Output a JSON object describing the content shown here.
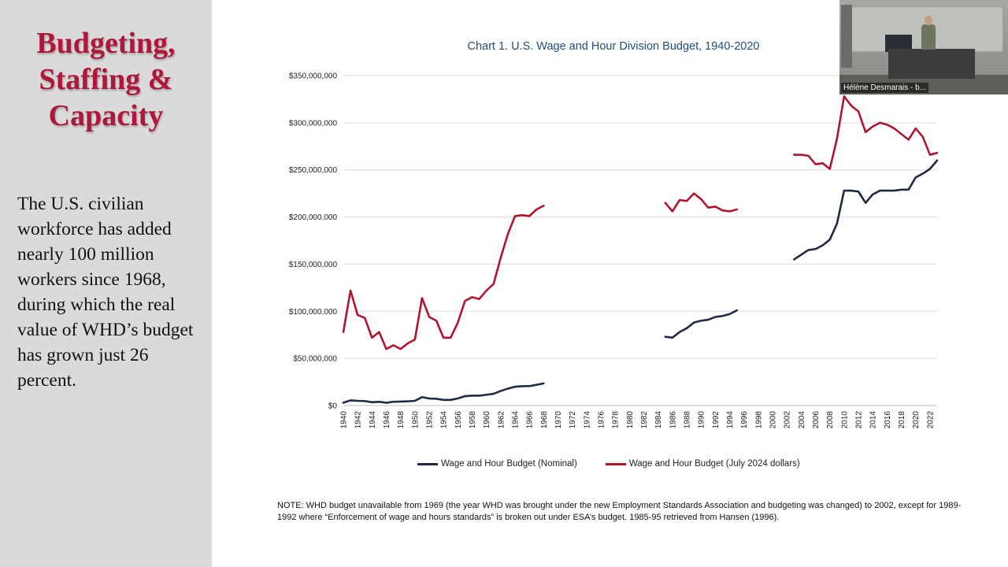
{
  "slide": {
    "title_lines": [
      "Budgeting,",
      "Staffing &",
      "Capacity"
    ],
    "body": "The U.S. civilian workforce has added nearly 100 million workers since 1968, during which the real value of WHD’s budget has grown just 26 percent."
  },
  "video": {
    "participant_name": "Hélène Desmarais - b..."
  },
  "note": "NOTE: WHD budget unavailable from 1969 (the year WHD was brought under the new Employment Standards Association and budgeting was changed) to 2002, except for 1989-1992 where “Enforcement of wage and hours standards” is broken out under ESA’s budget. 1985-95 retrieved from Hansen (1996).",
  "chart_data": {
    "type": "line",
    "title": "Chart 1. U.S. Wage and Hour Division Budget, 1940-2020",
    "xlabel": "",
    "ylabel": "",
    "xlim": [
      1940,
      2023
    ],
    "ylim": [
      0,
      350000000
    ],
    "y_ticks": [
      0,
      50000000,
      100000000,
      150000000,
      200000000,
      250000000,
      300000000,
      350000000
    ],
    "y_tick_labels": [
      "$0",
      "$50,000,000",
      "$100,000,000",
      "$150,000,000",
      "$200,000,000",
      "$250,000,000",
      "$300,000,000",
      "$350,000,000"
    ],
    "x_tick_labels": [
      "1940",
      "1942",
      "1944",
      "1946",
      "1948",
      "1950",
      "1952",
      "1954",
      "1956",
      "1958",
      "1960",
      "1962",
      "1964",
      "1966",
      "1968",
      "1970",
      "1972",
      "1974",
      "1976",
      "1978",
      "1980",
      "1982",
      "1984",
      "1986",
      "1988",
      "1990",
      "1992",
      "1994",
      "1996",
      "1998",
      "2000",
      "2002",
      "2004",
      "2006",
      "2008",
      "2010",
      "2012",
      "2014",
      "2016",
      "2018",
      "2020",
      "2022"
    ],
    "grid": "horizontal",
    "legend_position": "bottom",
    "series": [
      {
        "name": "Wage and Hour Budget (Nominal)",
        "color": "#1f2a44",
        "segments": [
          [
            [
              1940,
              3000000
            ],
            [
              1941,
              5500000
            ],
            [
              1942,
              5000000
            ],
            [
              1943,
              4800000
            ],
            [
              1944,
              3500000
            ],
            [
              1945,
              4000000
            ],
            [
              1946,
              3000000
            ],
            [
              1947,
              4000000
            ],
            [
              1948,
              4200000
            ],
            [
              1949,
              4500000
            ],
            [
              1950,
              5000000
            ],
            [
              1951,
              9000000
            ],
            [
              1952,
              7500000
            ],
            [
              1953,
              7200000
            ],
            [
              1954,
              6000000
            ],
            [
              1955,
              6000000
            ],
            [
              1956,
              7500000
            ],
            [
              1957,
              10000000
            ],
            [
              1958,
              10500000
            ],
            [
              1959,
              10500000
            ],
            [
              1960,
              11500000
            ],
            [
              1961,
              12500000
            ],
            [
              1962,
              15500000
            ],
            [
              1963,
              18000000
            ],
            [
              1964,
              20000000
            ],
            [
              1965,
              20500000
            ],
            [
              1966,
              20700000
            ],
            [
              1967,
              22000000
            ],
            [
              1968,
              23500000
            ]
          ],
          [
            [
              1985,
              73000000
            ],
            [
              1986,
              72000000
            ],
            [
              1987,
              78000000
            ],
            [
              1988,
              82000000
            ],
            [
              1989,
              88000000
            ],
            [
              1990,
              90000000
            ],
            [
              1991,
              91000000
            ],
            [
              1992,
              94000000
            ],
            [
              1993,
              95000000
            ],
            [
              1994,
              97000000
            ],
            [
              1995,
              101000000
            ]
          ],
          [
            [
              2003,
              155000000
            ],
            [
              2004,
              160000000
            ],
            [
              2005,
              165000000
            ],
            [
              2006,
              166000000
            ],
            [
              2007,
              170000000
            ],
            [
              2008,
              176000000
            ],
            [
              2009,
              193000000
            ],
            [
              2010,
              228000000
            ],
            [
              2011,
              228000000
            ],
            [
              2012,
              227000000
            ],
            [
              2013,
              215000000
            ],
            [
              2014,
              224000000
            ],
            [
              2015,
              228000000
            ],
            [
              2016,
              228000000
            ],
            [
              2017,
              228000000
            ],
            [
              2018,
              229000000
            ],
            [
              2019,
              229000000
            ],
            [
              2020,
              242000000
            ],
            [
              2021,
              246000000
            ],
            [
              2022,
              251000000
            ],
            [
              2023,
              260000000
            ]
          ]
        ]
      },
      {
        "name": "Wage and Hour Budget (July 2024 dollars)",
        "color": "#b0152f",
        "segments": [
          [
            [
              1940,
              78000000
            ],
            [
              1941,
              122000000
            ],
            [
              1942,
              96000000
            ],
            [
              1943,
              93000000
            ],
            [
              1944,
              72000000
            ],
            [
              1945,
              78000000
            ],
            [
              1946,
              60000000
            ],
            [
              1947,
              64000000
            ],
            [
              1948,
              60000000
            ],
            [
              1949,
              66000000
            ],
            [
              1950,
              70000000
            ],
            [
              1951,
              114000000
            ],
            [
              1952,
              94000000
            ],
            [
              1953,
              90000000
            ],
            [
              1954,
              72000000
            ],
            [
              1955,
              72000000
            ],
            [
              1956,
              88000000
            ],
            [
              1957,
              111000000
            ],
            [
              1958,
              115000000
            ],
            [
              1959,
              113000000
            ],
            [
              1960,
              122000000
            ],
            [
              1961,
              129000000
            ],
            [
              1962,
              157000000
            ],
            [
              1963,
              182000000
            ],
            [
              1964,
              201000000
            ],
            [
              1965,
              202000000
            ],
            [
              1966,
              201000000
            ],
            [
              1967,
              208000000
            ],
            [
              1968,
              212000000
            ]
          ],
          [
            [
              1985,
              215000000
            ],
            [
              1986,
              206000000
            ],
            [
              1987,
              218000000
            ],
            [
              1988,
              217000000
            ],
            [
              1989,
              225000000
            ],
            [
              1990,
              219000000
            ],
            [
              1991,
              210000000
            ],
            [
              1992,
              211000000
            ],
            [
              1993,
              207000000
            ],
            [
              1994,
              206000000
            ],
            [
              1995,
              208000000
            ]
          ],
          [
            [
              2003,
              266000000
            ],
            [
              2004,
              266000000
            ],
            [
              2005,
              265000000
            ],
            [
              2006,
              256000000
            ],
            [
              2007,
              257000000
            ],
            [
              2008,
              251000000
            ],
            [
              2009,
              283000000
            ],
            [
              2010,
              328000000
            ],
            [
              2011,
              318000000
            ],
            [
              2012,
              312000000
            ],
            [
              2013,
              290000000
            ],
            [
              2014,
              296000000
            ],
            [
              2015,
              300000000
            ],
            [
              2016,
              298000000
            ],
            [
              2017,
              294000000
            ],
            [
              2018,
              288000000
            ],
            [
              2019,
              282000000
            ],
            [
              2020,
              294000000
            ],
            [
              2021,
              285000000
            ],
            [
              2022,
              266000000
            ],
            [
              2023,
              268000000
            ]
          ]
        ]
      }
    ]
  }
}
